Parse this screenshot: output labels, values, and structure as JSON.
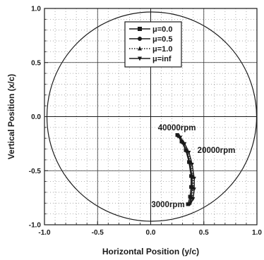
{
  "chart_data": {
    "type": "line",
    "xlabel": "Horizontal Position (y/c)",
    "ylabel": "Vertical Position (x/c)",
    "xlim": [
      -1.0,
      1.0
    ],
    "ylim": [
      -1.0,
      1.0
    ],
    "xticks": [
      "-1.0",
      "-0.5",
      "0.0",
      "0.5",
      "1.0"
    ],
    "yticks": [
      "-1.0",
      "-0.5",
      "0.0",
      "0.5",
      "1.0"
    ],
    "grid": "dotted",
    "legend_position": "top-right",
    "boundary_circle": {
      "center": [
        0,
        0
      ],
      "radius": 1.0
    },
    "series": [
      {
        "name": "μ=0.0",
        "marker": "square",
        "style": "solid",
        "x": [
          0.25,
          0.29,
          0.33,
          0.36,
          0.38,
          0.38,
          0.37,
          0.35
        ],
        "y": [
          -0.17,
          -0.23,
          -0.31,
          -0.42,
          -0.55,
          -0.65,
          -0.74,
          -0.81
        ]
      },
      {
        "name": "μ=0.5",
        "marker": "circle",
        "style": "solid",
        "x": [
          0.26,
          0.3,
          0.34,
          0.37,
          0.39,
          0.39,
          0.38,
          0.36
        ],
        "y": [
          -0.18,
          -0.24,
          -0.32,
          -0.43,
          -0.56,
          -0.66,
          -0.75,
          -0.81
        ]
      },
      {
        "name": "μ=1.0",
        "marker": "triangle-up",
        "style": "dotted",
        "x": [
          0.27,
          0.31,
          0.35,
          0.38,
          0.4,
          0.4,
          0.39,
          0.37
        ],
        "y": [
          -0.18,
          -0.24,
          -0.32,
          -0.43,
          -0.56,
          -0.66,
          -0.75,
          -0.8
        ]
      },
      {
        "name": "μ=inf",
        "marker": "triangle-down",
        "style": "solid",
        "x": [
          0.28,
          0.32,
          0.36,
          0.39,
          0.41,
          0.41,
          0.4,
          0.38
        ],
        "y": [
          -0.19,
          -0.25,
          -0.33,
          -0.44,
          -0.57,
          -0.67,
          -0.76,
          -0.79
        ]
      }
    ],
    "annotations": [
      {
        "text": "40000rpm",
        "x": 0.26,
        "y": -0.18
      },
      {
        "text": "20000rpm",
        "x": 0.36,
        "y": -0.31
      },
      {
        "text": "3000rpm",
        "x": 0.36,
        "y": -0.81
      }
    ]
  }
}
